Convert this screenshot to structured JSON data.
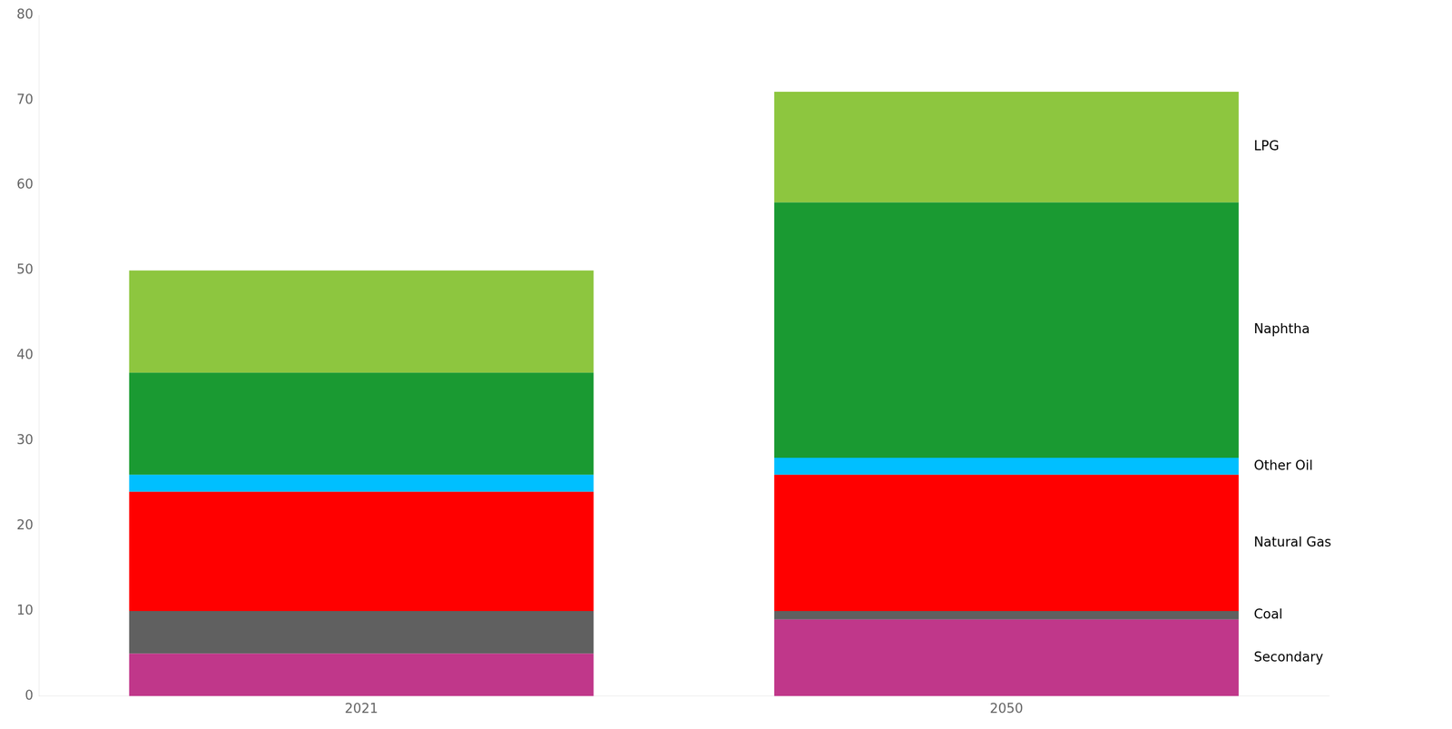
{
  "chart_data": {
    "type": "bar",
    "categories": [
      "2021",
      "2050"
    ],
    "series": [
      {
        "name": "Secondary",
        "color": "#C0378A",
        "values": [
          5,
          9
        ]
      },
      {
        "name": "Coal",
        "color": "#606060",
        "values": [
          5,
          1
        ]
      },
      {
        "name": "Natural Gas",
        "color": "#FF0000",
        "values": [
          14,
          16
        ]
      },
      {
        "name": "Other Oil",
        "color": "#00BFFF",
        "values": [
          2,
          2
        ]
      },
      {
        "name": "Naphtha",
        "color": "#1A9A32",
        "values": [
          12,
          30
        ]
      },
      {
        "name": "LPG",
        "color": "#8DC63F",
        "values": [
          12,
          13
        ]
      }
    ],
    "stacked": true,
    "ylim": [
      0,
      80
    ],
    "yticks": [
      0,
      10,
      20,
      30,
      40,
      50,
      60,
      70,
      80
    ],
    "grid": false
  }
}
